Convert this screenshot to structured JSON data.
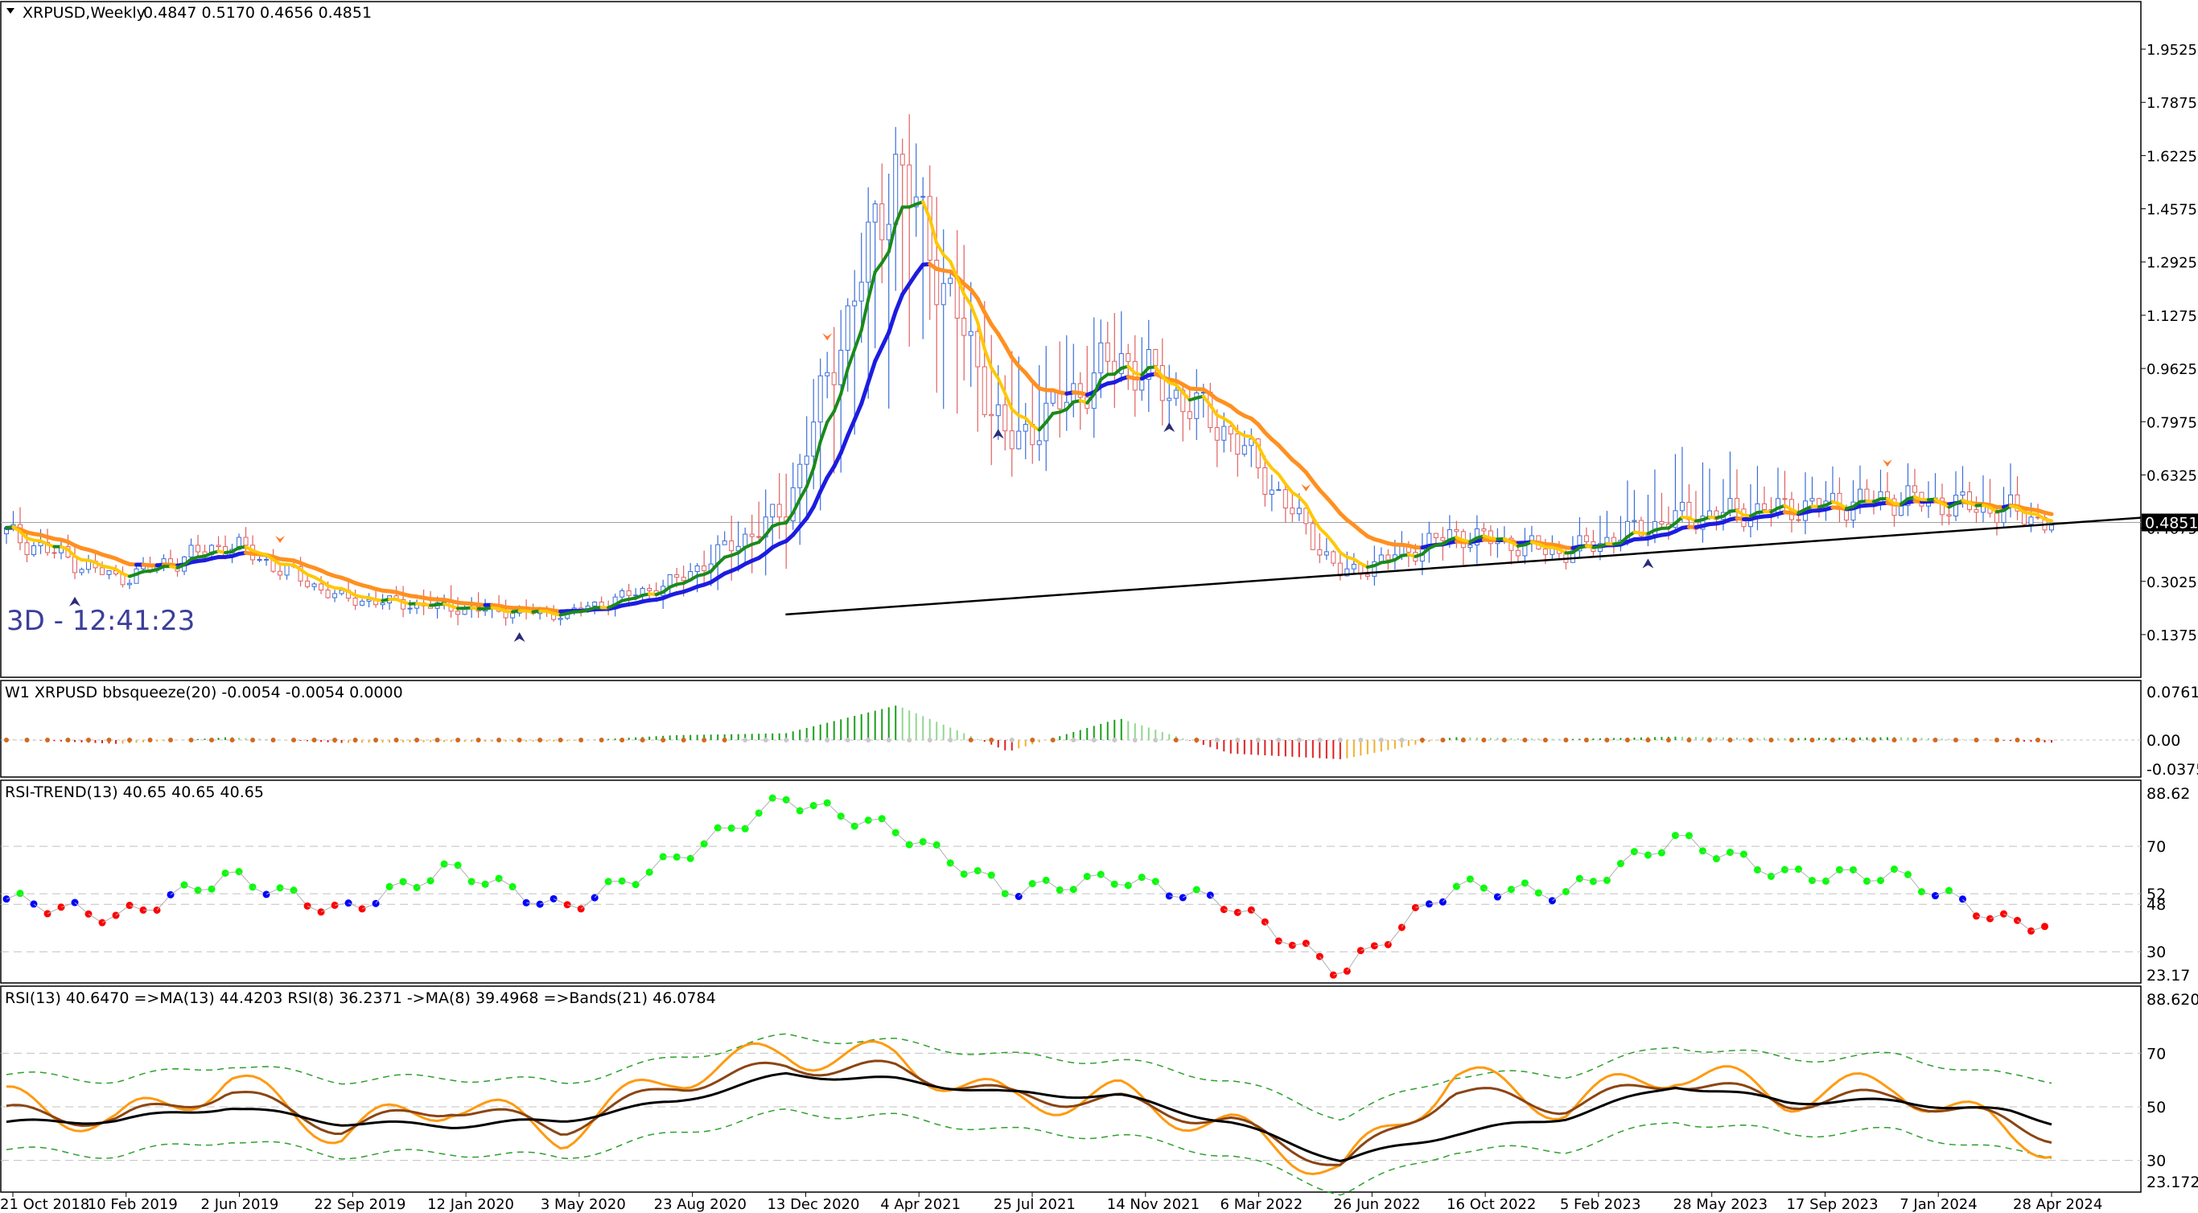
{
  "header": {
    "symbol_label": "XRPUSD,Weekly",
    "ohlc_label": "0.4847 0.5170 0.4656 0.4851",
    "timer_label": "3D - 12:41:23",
    "current_price": "0.4851"
  },
  "price_axis": [
    "1.9525",
    "1.7875",
    "1.6225",
    "1.4575",
    "1.2925",
    "1.1275",
    "0.9625",
    "0.7975",
    "0.6325",
    "0.4675",
    "0.3025",
    "0.1375"
  ],
  "time_axis": [
    "21 Oct 2018",
    "10 Feb 2019",
    "2 Jun 2019",
    "22 Sep 2019",
    "12 Jan 2020",
    "3 May 2020",
    "23 Aug 2020",
    "13 Dec 2020",
    "4 Apr 2021",
    "25 Jul 2021",
    "14 Nov 2021",
    "6 Mar 2022",
    "26 Jun 2022",
    "16 Oct 2022",
    "5 Feb 2023",
    "28 May 2023",
    "17 Sep 2023",
    "7 Jan 2024",
    "28 Apr 2024"
  ],
  "panels": {
    "bbsqueeze": {
      "label": "W1 XRPUSD bbsqueeze(20) -0.0054 -0.0054 0.0000",
      "ticks": [
        "0.0761",
        "0.00",
        "-0.0375"
      ]
    },
    "rsi_trend": {
      "label": "RSI-TREND(13) 40.65 40.65 40.65",
      "ticks": [
        "88.62",
        "70",
        "52",
        "48",
        "30",
        "23.17"
      ]
    },
    "rsi_bands": {
      "label": "RSI(13) 40.6470  =>MA(13) 44.4203  RSI(8) 36.2371  ->MA(8) 39.4968  =>Bands(21) 46.0784",
      "ticks": [
        "88.6207",
        "70",
        "50",
        "30",
        "23.1729"
      ]
    }
  },
  "colors": {
    "bull": "#3a6dd8",
    "bear": "#e06060",
    "ma_fast_up": "#1a8a1a",
    "ma_fast_down": "#ffc800",
    "ma_slow_up": "#1c1ce0",
    "ma_slow_down": "#ff9020",
    "trend_up": "#00ff00",
    "trend_flat": "#0000ff",
    "trend_down": "#ff0000"
  },
  "chart_data": {
    "type": "candlestick",
    "title": "XRPUSD,Weekly",
    "ylim": [
      0.06,
      2.03
    ],
    "current_price": 0.4851,
    "x": [
      "2018-10-21",
      "2019-02-10",
      "2019-06-02",
      "2019-09-22",
      "2020-01-12",
      "2020-05-03",
      "2020-08-23",
      "2020-12-13",
      "2021-04-04",
      "2021-07-25",
      "2021-11-14",
      "2022-03-06",
      "2022-06-26",
      "2022-10-16",
      "2023-02-05",
      "2023-05-28",
      "2023-09-17",
      "2024-01-07",
      "2024-04-28",
      "2024-06-09"
    ],
    "close": [
      0.45,
      0.31,
      0.42,
      0.25,
      0.22,
      0.2,
      0.3,
      0.52,
      1.6,
      0.72,
      1.0,
      0.76,
      0.32,
      0.45,
      0.39,
      0.5,
      0.53,
      0.56,
      0.52,
      0.4851
    ],
    "high": [
      0.58,
      0.36,
      0.5,
      0.31,
      0.34,
      0.24,
      0.36,
      0.82,
      1.96,
      1.32,
      1.34,
      0.86,
      0.44,
      0.55,
      0.48,
      0.93,
      0.74,
      0.71,
      0.74,
      0.517
    ],
    "low": [
      0.38,
      0.28,
      0.37,
      0.22,
      0.14,
      0.16,
      0.2,
      0.19,
      0.37,
      0.52,
      0.76,
      0.58,
      0.29,
      0.3,
      0.34,
      0.41,
      0.43,
      0.48,
      0.43,
      0.4656
    ],
    "trendline": {
      "from": [
        "2020-12-13",
        0.2
      ],
      "to": [
        "2024-06-09",
        0.48
      ]
    },
    "bbsqueeze_ylim": [
      -0.07,
      0.1
    ],
    "bbsqueeze": [
      0.002,
      -0.008,
      0.006,
      -0.006,
      -0.004,
      -0.003,
      0.01,
      0.014,
      0.072,
      -0.024,
      0.045,
      -0.028,
      -0.04,
      0.006,
      0.002,
      0.007,
      0.004,
      0.006,
      -0.002,
      -0.0054
    ],
    "rsi_trend_ylim": [
      20,
      92
    ],
    "rsi_trend": [
      50,
      43,
      59,
      45,
      62,
      46,
      65,
      88,
      76,
      53,
      58,
      48,
      22,
      55,
      52,
      73,
      59,
      59,
      40.65,
      40.65
    ],
    "rsi_ylim": [
      20,
      92
    ],
    "rsi13": [
      49,
      46,
      53,
      45,
      47,
      43,
      55,
      60,
      60,
      55,
      52,
      44,
      28,
      50,
      50,
      60,
      52,
      55,
      44,
      40.647
    ],
    "rsi_ma13": [
      44,
      45,
      50,
      44,
      43,
      45,
      52,
      62,
      60,
      55,
      54,
      44,
      30,
      40,
      46,
      58,
      52,
      52,
      48,
      44.4203
    ],
    "rsi8": [
      52,
      44,
      60,
      40,
      52,
      40,
      62,
      70,
      68,
      52,
      54,
      42,
      26,
      62,
      50,
      64,
      54,
      58,
      40,
      36.2371
    ],
    "rsi_ma8": [
      48,
      45,
      56,
      42,
      50,
      42,
      58,
      65,
      64,
      54,
      52,
      44,
      28,
      56,
      50,
      60,
      52,
      54,
      44,
      39.4968
    ],
    "bands_mid": [
      48,
      46,
      52,
      46,
      47,
      45,
      54,
      62,
      60,
      55,
      53,
      46,
      32,
      48,
      48,
      59,
      54,
      55,
      47,
      46.0784
    ]
  }
}
